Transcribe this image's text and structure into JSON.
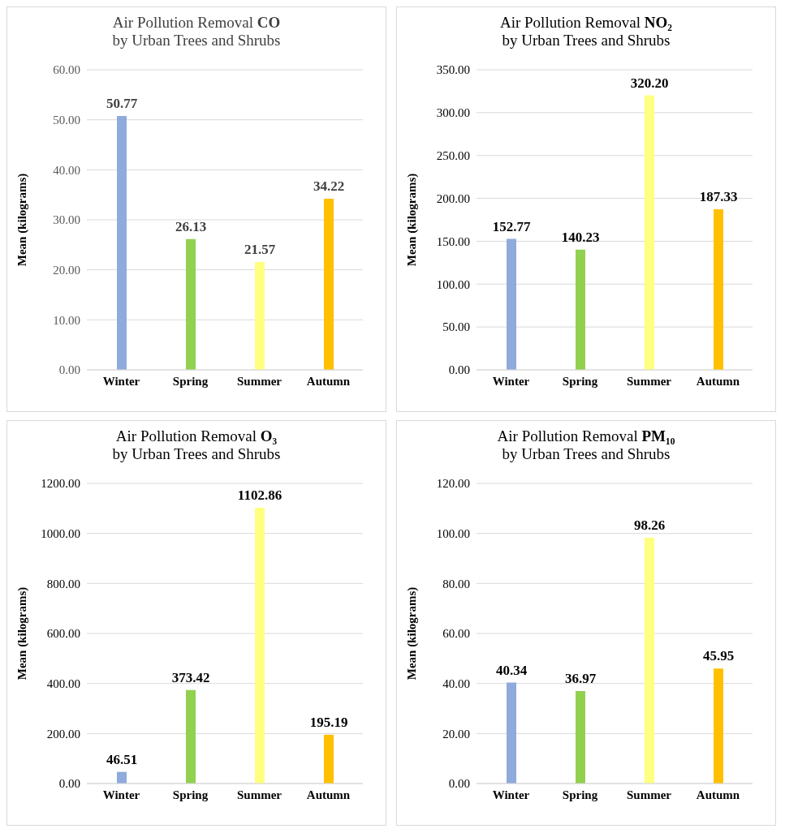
{
  "chart_data": [
    {
      "type": "bar",
      "title": "Air Pollution Removal CO",
      "subtitle": "by Urban Trees and Shrubs",
      "ylabel": "Mean (kilograms)",
      "categories": [
        "Winter",
        "Spring",
        "Summer",
        "Autumn"
      ],
      "values": [
        50.77,
        26.13,
        21.57,
        34.22
      ],
      "value_labels": [
        "50.77",
        "26.13",
        "21.57",
        "34.22"
      ],
      "colors": [
        "#8faadc",
        "#92d050",
        "#ffff80",
        "#ffc000"
      ],
      "ylim": [
        0,
        60
      ],
      "yticks": [
        {
          "value": 0,
          "label": "0.00"
        },
        {
          "value": 10,
          "label": "10.00"
        },
        {
          "value": 20,
          "label": "20.00"
        },
        {
          "value": 30,
          "label": "30.00"
        },
        {
          "value": 40,
          "label": "40.00"
        },
        {
          "value": 50,
          "label": "50.00"
        },
        {
          "value": 60,
          "label": "60.00"
        }
      ],
      "grid": "y"
    },
    {
      "type": "bar",
      "title": "Air Pollution Removal NO₂",
      "subtitle": "by Urban Trees and Shrubs",
      "ylabel": "Mean (kilograms)",
      "categories": [
        "Winter",
        "Spring",
        "Summer",
        "Autumn"
      ],
      "values": [
        152.77,
        140.23,
        320.2,
        187.33
      ],
      "value_labels": [
        "152.77",
        "140.23",
        "320.20",
        "187.33"
      ],
      "colors": [
        "#8faadc",
        "#92d050",
        "#ffff80",
        "#ffc000"
      ],
      "ylim": [
        0,
        350
      ],
      "yticks": [
        {
          "value": 0,
          "label": "0.00"
        },
        {
          "value": 50,
          "label": "50.00"
        },
        {
          "value": 100,
          "label": "100.00"
        },
        {
          "value": 150,
          "label": "150.00"
        },
        {
          "value": 200,
          "label": "200.00"
        },
        {
          "value": 250,
          "label": "250.00"
        },
        {
          "value": 300,
          "label": "300.00"
        },
        {
          "value": 350,
          "label": "350.00"
        }
      ],
      "grid": "y"
    },
    {
      "type": "bar",
      "title": "Air Pollution Removal O₃",
      "subtitle": "by Urban Trees and Shrubs",
      "ylabel": "Mean (kilograms)",
      "categories": [
        "Winter",
        "Spring",
        "Summer",
        "Autumn"
      ],
      "values": [
        46.51,
        373.42,
        1102.86,
        195.19
      ],
      "value_labels": [
        "46.51",
        "373.42",
        "1102.86",
        "195.19"
      ],
      "colors": [
        "#8faadc",
        "#92d050",
        "#ffff80",
        "#ffc000"
      ],
      "ylim": [
        0,
        1200
      ],
      "yticks": [
        {
          "value": 0,
          "label": "0.00"
        },
        {
          "value": 200,
          "label": "200.00"
        },
        {
          "value": 400,
          "label": "400.00"
        },
        {
          "value": 600,
          "label": "600.00"
        },
        {
          "value": 800,
          "label": "800.00"
        },
        {
          "value": 1000,
          "label": "1000.00"
        },
        {
          "value": 1200,
          "label": "1200.00"
        }
      ],
      "grid": "y"
    },
    {
      "type": "bar",
      "title": "Air Pollution Removal PM₁₀",
      "subtitle": "by Urban Trees and Shrubs",
      "ylabel": "Mean (kilograms)",
      "categories": [
        "Winter",
        "Spring",
        "Summer",
        "Autumn"
      ],
      "values": [
        40.34,
        36.97,
        98.26,
        45.95
      ],
      "value_labels": [
        "40.34",
        "36.97",
        "98.26",
        "45.95"
      ],
      "colors": [
        "#8faadc",
        "#92d050",
        "#ffff80",
        "#ffc000"
      ],
      "ylim": [
        0,
        120
      ],
      "yticks": [
        {
          "value": 0,
          "label": "0.00"
        },
        {
          "value": 20,
          "label": "20.00"
        },
        {
          "value": 40,
          "label": "40.00"
        },
        {
          "value": 60,
          "label": "60.00"
        },
        {
          "value": 80,
          "label": "80.00"
        },
        {
          "value": 100,
          "label": "100.00"
        },
        {
          "value": 120,
          "label": "120.00"
        }
      ],
      "grid": "y"
    }
  ]
}
